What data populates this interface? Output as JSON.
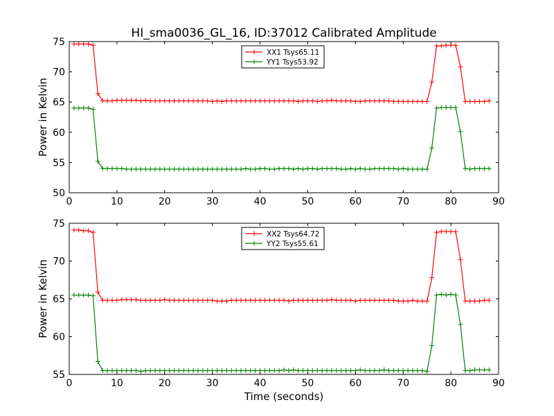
{
  "figure": {
    "title": "HI_sma0036_GL_16, ID:37012 Calibrated Amplitude",
    "xlabel": "Time (seconds)"
  },
  "chart_data": [
    {
      "type": "line",
      "title": "HI_sma0036_GL_16, ID:37012 Calibrated Amplitude",
      "xlabel": "",
      "ylabel": "Power in Kelvin",
      "xlim": [
        0,
        90
      ],
      "ylim": [
        50,
        75
      ],
      "xticks": [
        "0",
        "10",
        "20",
        "30",
        "40",
        "50",
        "60",
        "70",
        "80",
        "90"
      ],
      "yticks": [
        "50",
        "55",
        "60",
        "65",
        "70",
        "75"
      ],
      "grid": false,
      "legend": "top-center",
      "series": [
        {
          "name": "XX1 Tsys65.11",
          "color": "#ff0000",
          "x": [
            1,
            2,
            3,
            4,
            5,
            6,
            7,
            8,
            9,
            10,
            11,
            12,
            13,
            14,
            15,
            16,
            17,
            18,
            19,
            20,
            21,
            22,
            23,
            24,
            25,
            26,
            27,
            28,
            29,
            30,
            31,
            32,
            33,
            34,
            35,
            36,
            37,
            38,
            39,
            40,
            41,
            42,
            43,
            44,
            45,
            46,
            47,
            48,
            49,
            50,
            51,
            52,
            53,
            54,
            55,
            56,
            57,
            58,
            59,
            60,
            61,
            62,
            63,
            64,
            65,
            66,
            67,
            68,
            69,
            70,
            71,
            72,
            73,
            74,
            75,
            76,
            77,
            78,
            79,
            80,
            81,
            82,
            83,
            84,
            85,
            86,
            87,
            88
          ],
          "values": [
            74.6,
            74.6,
            74.6,
            74.6,
            74.4,
            66.4,
            65.2,
            65.2,
            65.2,
            65.3,
            65.3,
            65.3,
            65.3,
            65.3,
            65.2,
            65.3,
            65.2,
            65.2,
            65.2,
            65.2,
            65.2,
            65.2,
            65.2,
            65.2,
            65.2,
            65.2,
            65.2,
            65.2,
            65.2,
            65.1,
            65.2,
            65.1,
            65.2,
            65.2,
            65.2,
            65.2,
            65.2,
            65.2,
            65.2,
            65.2,
            65.2,
            65.2,
            65.2,
            65.2,
            65.2,
            65.2,
            65.2,
            65.1,
            65.2,
            65.2,
            65.2,
            65.1,
            65.2,
            65.2,
            65.3,
            65.2,
            65.2,
            65.2,
            65.2,
            65.1,
            65.1,
            65.2,
            65.2,
            65.2,
            65.2,
            65.2,
            65.2,
            65.1,
            65.1,
            65.1,
            65.1,
            65.1,
            65.1,
            65.1,
            65.1,
            68.3,
            74.3,
            74.3,
            74.4,
            74.4,
            74.4,
            70.8,
            65.1,
            65.1,
            65.1,
            65.1,
            65.1,
            65.2
          ]
        },
        {
          "name": "YY1 Tsys53.92",
          "color": "#008000",
          "x": [
            1,
            2,
            3,
            4,
            5,
            6,
            7,
            8,
            9,
            10,
            11,
            12,
            13,
            14,
            15,
            16,
            17,
            18,
            19,
            20,
            21,
            22,
            23,
            24,
            25,
            26,
            27,
            28,
            29,
            30,
            31,
            32,
            33,
            34,
            35,
            36,
            37,
            38,
            39,
            40,
            41,
            42,
            43,
            44,
            45,
            46,
            47,
            48,
            49,
            50,
            51,
            52,
            53,
            54,
            55,
            56,
            57,
            58,
            59,
            60,
            61,
            62,
            63,
            64,
            65,
            66,
            67,
            68,
            69,
            70,
            71,
            72,
            73,
            74,
            75,
            76,
            77,
            78,
            79,
            80,
            81,
            82,
            83,
            84,
            85,
            86,
            87,
            88
          ],
          "values": [
            64.0,
            64.0,
            64.0,
            64.0,
            63.8,
            55.2,
            54.0,
            54.0,
            54.0,
            54.0,
            54.0,
            53.9,
            53.9,
            53.9,
            53.9,
            53.9,
            53.9,
            53.9,
            53.9,
            53.9,
            53.9,
            53.9,
            53.9,
            53.9,
            53.9,
            53.9,
            53.9,
            53.9,
            53.9,
            53.9,
            53.9,
            53.9,
            53.9,
            53.9,
            53.9,
            53.9,
            54.0,
            53.9,
            53.9,
            54.0,
            54.0,
            53.9,
            53.9,
            54.0,
            54.0,
            54.0,
            53.9,
            54.0,
            53.9,
            54.0,
            54.0,
            53.9,
            54.0,
            54.0,
            54.0,
            54.0,
            53.9,
            53.9,
            54.0,
            53.9,
            54.0,
            53.9,
            53.9,
            54.0,
            54.0,
            54.0,
            54.0,
            54.0,
            53.9,
            54.0,
            53.9,
            53.9,
            53.9,
            53.9,
            53.9,
            57.4,
            64.0,
            64.1,
            64.1,
            64.1,
            64.1,
            60.1,
            54.0,
            53.9,
            54.0,
            54.0,
            54.0,
            54.0
          ]
        }
      ]
    },
    {
      "type": "line",
      "title": "",
      "xlabel": "Time (seconds)",
      "ylabel": "Power in Kelvin",
      "xlim": [
        0,
        90
      ],
      "ylim": [
        55,
        75
      ],
      "xticks": [
        "0",
        "10",
        "20",
        "30",
        "40",
        "50",
        "60",
        "70",
        "80",
        "90"
      ],
      "yticks": [
        "55",
        "60",
        "65",
        "70",
        "75"
      ],
      "grid": false,
      "legend": "top-center",
      "series": [
        {
          "name": "XX2 Tsys64.72",
          "color": "#ff0000",
          "x": [
            1,
            2,
            3,
            4,
            5,
            6,
            7,
            8,
            9,
            10,
            11,
            12,
            13,
            14,
            15,
            16,
            17,
            18,
            19,
            20,
            21,
            22,
            23,
            24,
            25,
            26,
            27,
            28,
            29,
            30,
            31,
            32,
            33,
            34,
            35,
            36,
            37,
            38,
            39,
            40,
            41,
            42,
            43,
            44,
            45,
            46,
            47,
            48,
            49,
            50,
            51,
            52,
            53,
            54,
            55,
            56,
            57,
            58,
            59,
            60,
            61,
            62,
            63,
            64,
            65,
            66,
            67,
            68,
            69,
            70,
            71,
            72,
            73,
            74,
            75,
            76,
            77,
            78,
            79,
            80,
            81,
            82,
            83,
            84,
            85,
            86,
            87,
            88
          ],
          "values": [
            74.1,
            74.1,
            74.0,
            74.0,
            73.8,
            65.9,
            64.8,
            64.8,
            64.8,
            64.8,
            64.9,
            64.9,
            64.9,
            64.9,
            64.8,
            64.8,
            64.8,
            64.8,
            64.8,
            64.9,
            64.8,
            64.8,
            64.8,
            64.8,
            64.8,
            64.8,
            64.8,
            64.8,
            64.8,
            64.8,
            64.7,
            64.7,
            64.7,
            64.8,
            64.8,
            64.8,
            64.8,
            64.8,
            64.8,
            64.8,
            64.8,
            64.8,
            64.8,
            64.8,
            64.8,
            64.7,
            64.8,
            64.8,
            64.8,
            64.8,
            64.8,
            64.8,
            64.8,
            64.8,
            64.9,
            64.8,
            64.8,
            64.8,
            64.8,
            64.7,
            64.8,
            64.8,
            64.8,
            64.8,
            64.8,
            64.8,
            64.8,
            64.8,
            64.7,
            64.7,
            64.7,
            64.8,
            64.7,
            64.7,
            64.7,
            67.8,
            73.8,
            73.9,
            73.9,
            73.9,
            73.9,
            70.2,
            64.7,
            64.7,
            64.7,
            64.7,
            64.8,
            64.8
          ]
        },
        {
          "name": "YY2 Tsys55.61",
          "color": "#008000",
          "x": [
            1,
            2,
            3,
            4,
            5,
            6,
            7,
            8,
            9,
            10,
            11,
            12,
            13,
            14,
            15,
            16,
            17,
            18,
            19,
            20,
            21,
            22,
            23,
            24,
            25,
            26,
            27,
            28,
            29,
            30,
            31,
            32,
            33,
            34,
            35,
            36,
            37,
            38,
            39,
            40,
            41,
            42,
            43,
            44,
            45,
            46,
            47,
            48,
            49,
            50,
            51,
            52,
            53,
            54,
            55,
            56,
            57,
            58,
            59,
            60,
            61,
            62,
            63,
            64,
            65,
            66,
            67,
            68,
            69,
            70,
            71,
            72,
            73,
            74,
            75,
            76,
            77,
            78,
            79,
            80,
            81,
            82,
            83,
            84,
            85,
            86,
            87,
            88
          ],
          "values": [
            65.5,
            65.5,
            65.5,
            65.5,
            65.4,
            56.7,
            55.5,
            55.5,
            55.5,
            55.5,
            55.5,
            55.5,
            55.5,
            55.5,
            55.4,
            55.5,
            55.5,
            55.5,
            55.5,
            55.5,
            55.5,
            55.5,
            55.5,
            55.5,
            55.5,
            55.5,
            55.5,
            55.5,
            55.5,
            55.5,
            55.5,
            55.5,
            55.5,
            55.5,
            55.5,
            55.5,
            55.5,
            55.5,
            55.5,
            55.5,
            55.5,
            55.5,
            55.5,
            55.5,
            55.6,
            55.5,
            55.6,
            55.5,
            55.5,
            55.5,
            55.5,
            55.5,
            55.5,
            55.5,
            55.5,
            55.5,
            55.5,
            55.5,
            55.5,
            55.5,
            55.6,
            55.5,
            55.5,
            55.5,
            55.5,
            55.6,
            55.5,
            55.5,
            55.5,
            55.5,
            55.5,
            55.5,
            55.5,
            55.5,
            55.4,
            58.8,
            65.5,
            65.6,
            65.5,
            65.6,
            65.5,
            61.6,
            55.5,
            55.5,
            55.6,
            55.6,
            55.6,
            55.6
          ]
        }
      ]
    }
  ]
}
